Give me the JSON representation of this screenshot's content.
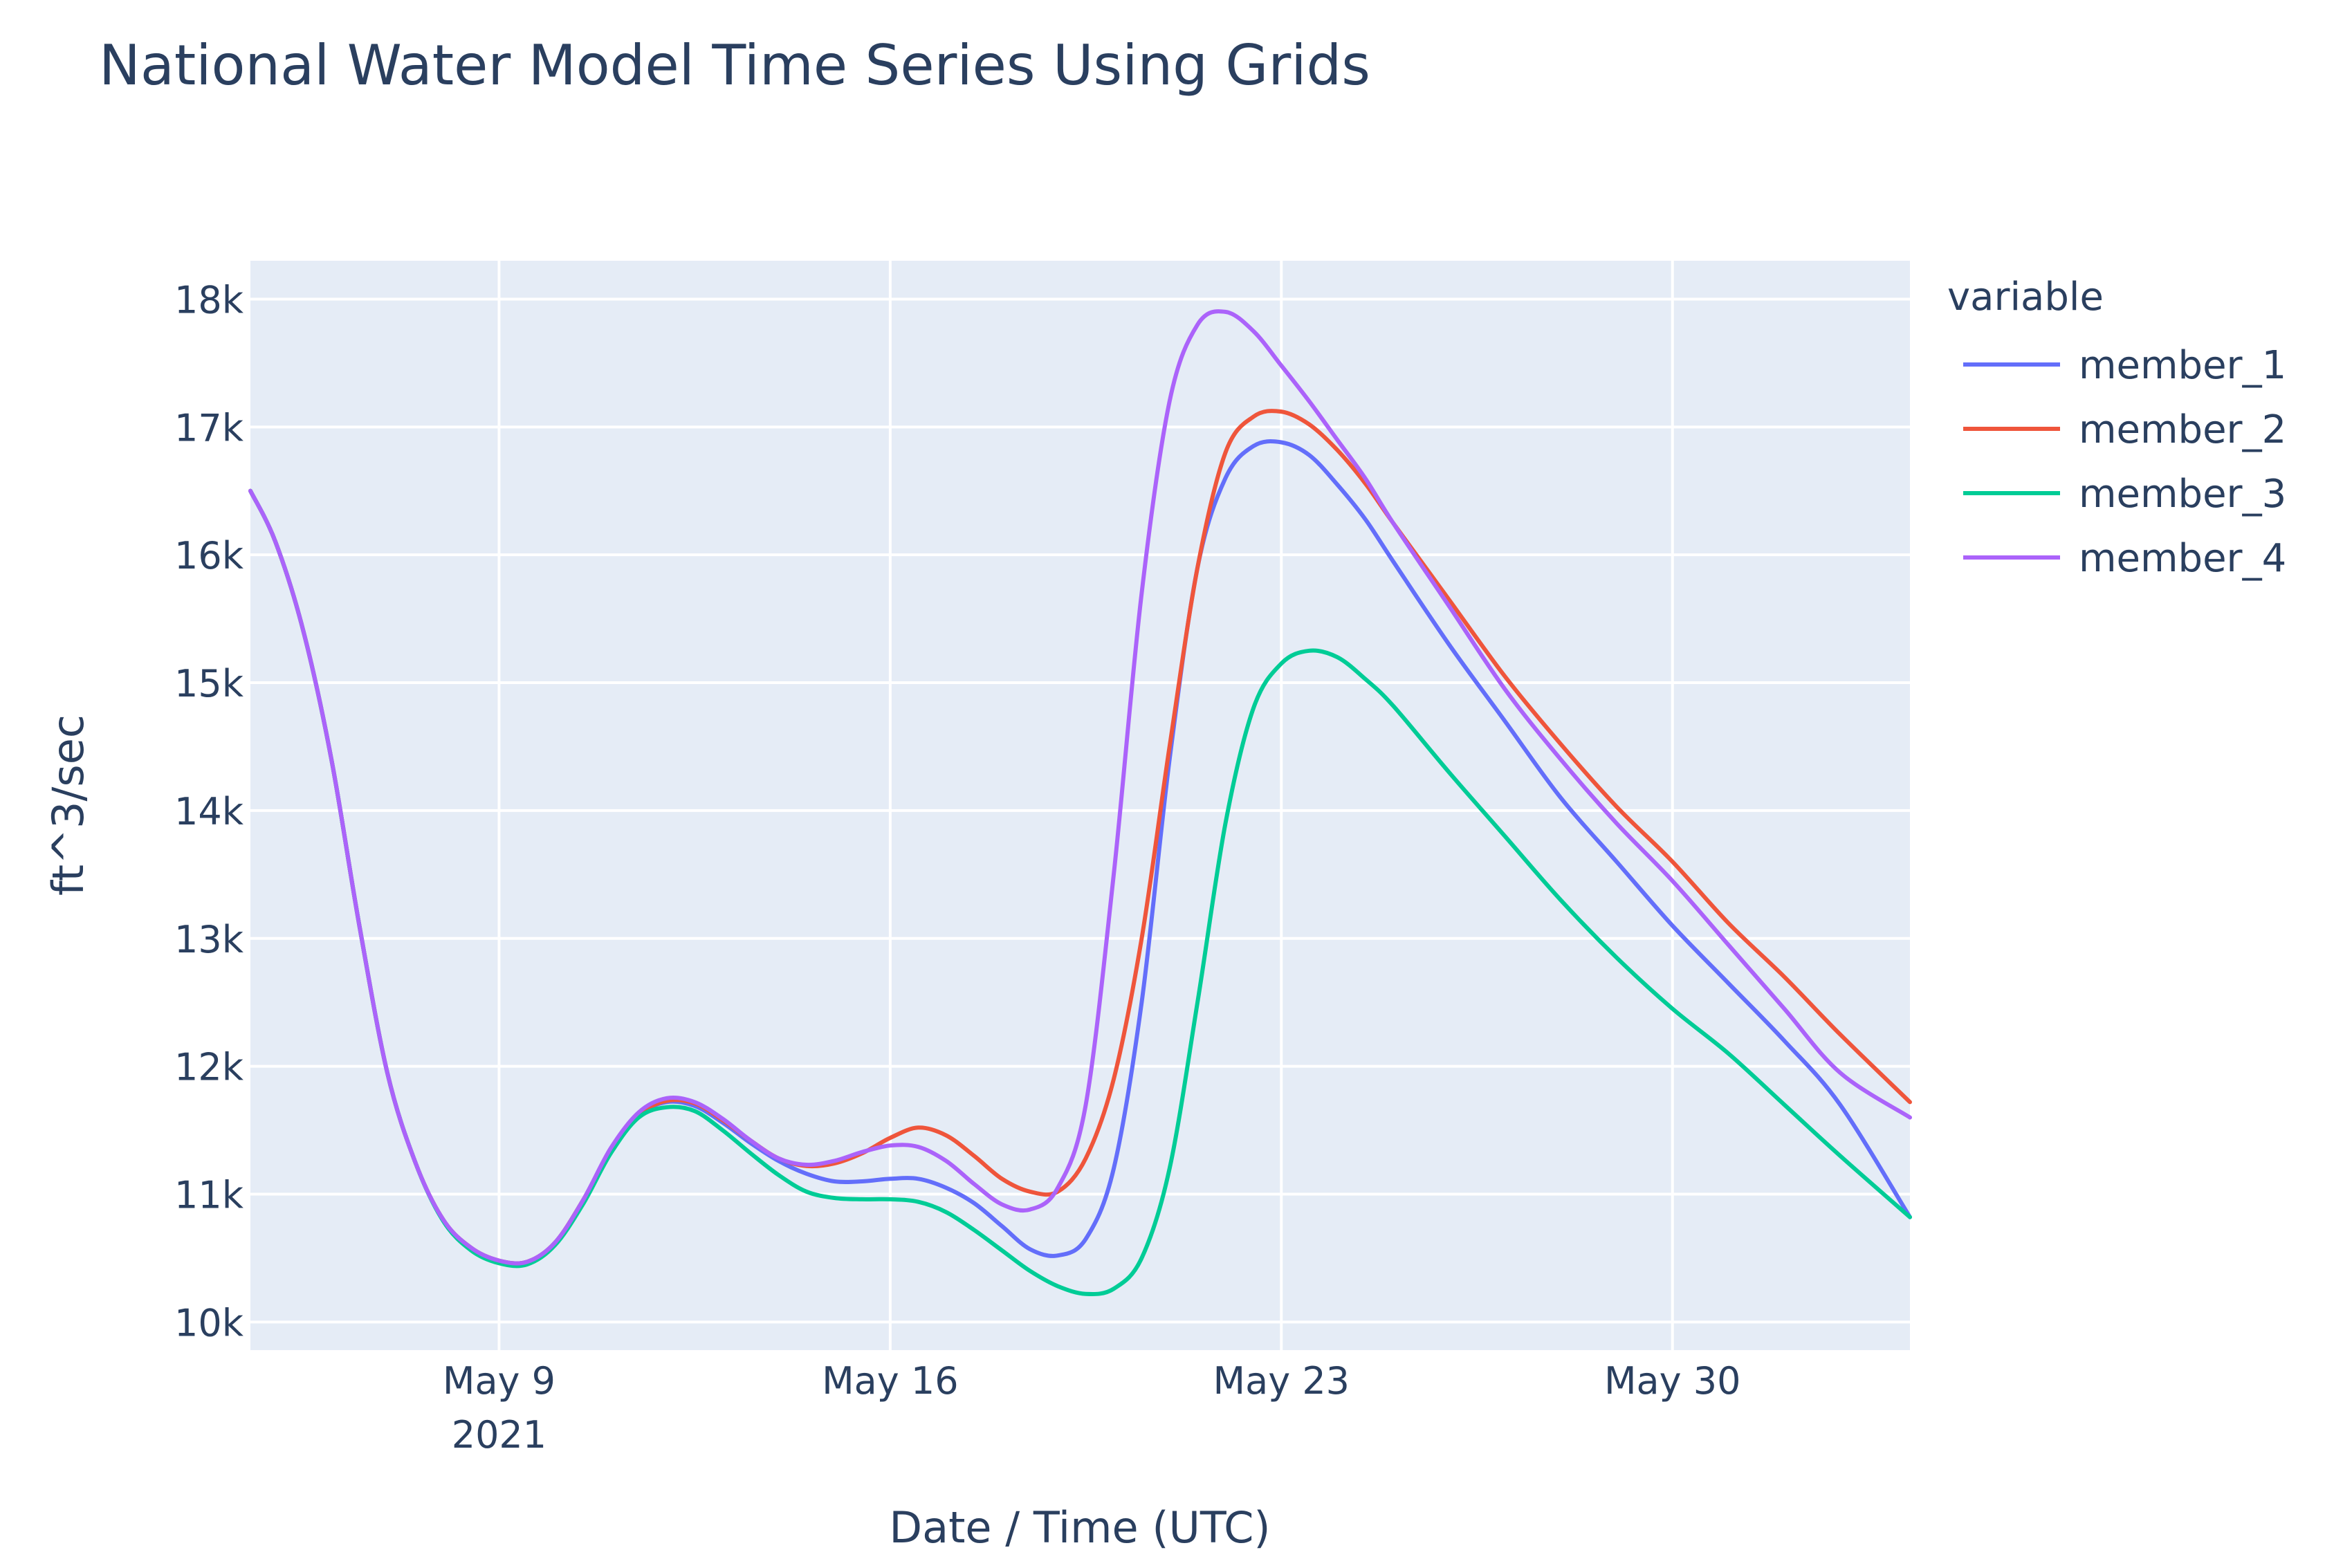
{
  "chart_data": {
    "type": "line",
    "title": "National Water Model Time Series Using Grids",
    "xlabel": "Date / Time (UTC)",
    "ylabel": "ft^3/sec",
    "x_tick_labels": [
      {
        "day": 9,
        "label": "May 9",
        "sublabel": "2021"
      },
      {
        "day": 16,
        "label": "May 16",
        "sublabel": ""
      },
      {
        "day": 23,
        "label": "May 23",
        "sublabel": ""
      },
      {
        "day": 30,
        "label": "May 30",
        "sublabel": ""
      }
    ],
    "y_tick_values": [
      10000,
      11000,
      12000,
      13000,
      14000,
      15000,
      16000,
      17000,
      18000
    ],
    "y_tick_labels": [
      "10k",
      "11k",
      "12k",
      "13k",
      "14k",
      "15k",
      "16k",
      "17k",
      "18k"
    ],
    "xlim_day": [
      4.55,
      34.25
    ],
    "ylim": [
      9780,
      18300
    ],
    "grid": true,
    "legend": {
      "title": "variable",
      "placement": "right"
    },
    "x_unit": "day of May 2021",
    "series": [
      {
        "name": "member_1",
        "color": "#636efa",
        "x": [
          4.55,
          5,
          5.5,
          6,
          6.5,
          7,
          7.5,
          8,
          8.5,
          9,
          9.5,
          10,
          10.5,
          11,
          11.5,
          12,
          12.5,
          13,
          13.5,
          14,
          14.5,
          15,
          15.5,
          16,
          16.5,
          17,
          17.5,
          18,
          18.5,
          19,
          19.5,
          20,
          20.5,
          21,
          21.5,
          22,
          22.5,
          23,
          23.5,
          24,
          24.5,
          25,
          26,
          27,
          28,
          29,
          30,
          31,
          32,
          33,
          34.25
        ],
        "y": [
          16500,
          16100,
          15400,
          14400,
          13100,
          11950,
          11250,
          10800,
          10580,
          10480,
          10470,
          10620,
          10950,
          11350,
          11620,
          11720,
          11690,
          11560,
          11400,
          11260,
          11160,
          11100,
          11100,
          11120,
          11120,
          11050,
          10930,
          10750,
          10570,
          10520,
          10650,
          11200,
          12500,
          14400,
          15900,
          16600,
          16850,
          16880,
          16780,
          16550,
          16280,
          15950,
          15300,
          14700,
          14100,
          13600,
          13100,
          12650,
          12200,
          11700,
          10820
        ]
      },
      {
        "name": "member_2",
        "color": "#ef553b",
        "x": [
          4.55,
          5,
          5.5,
          6,
          6.5,
          7,
          7.5,
          8,
          8.5,
          9,
          9.5,
          10,
          10.5,
          11,
          11.5,
          12,
          12.5,
          13,
          13.5,
          14,
          14.5,
          15,
          15.5,
          16,
          16.5,
          17,
          17.5,
          18,
          18.5,
          19,
          19.5,
          20,
          20.5,
          21,
          21.5,
          22,
          22.5,
          23,
          23.5,
          24,
          24.5,
          25,
          26,
          27,
          28,
          29,
          30,
          31,
          32,
          33,
          34.25
        ],
        "y": [
          16500,
          16100,
          15400,
          14400,
          13100,
          11950,
          11250,
          10800,
          10580,
          10480,
          10470,
          10620,
          10950,
          11350,
          11620,
          11730,
          11710,
          11580,
          11420,
          11280,
          11220,
          11240,
          11320,
          11440,
          11520,
          11460,
          11300,
          11120,
          11020,
          11020,
          11280,
          11900,
          13000,
          14500,
          15900,
          16800,
          17080,
          17120,
          17020,
          16820,
          16560,
          16250,
          15650,
          15050,
          14520,
          14030,
          13600,
          13120,
          12700,
          12250,
          11720
        ]
      },
      {
        "name": "member_3",
        "color": "#00cc96",
        "x": [
          4.55,
          5,
          5.5,
          6,
          6.5,
          7,
          7.5,
          8,
          8.5,
          9,
          9.5,
          10,
          10.5,
          11,
          11.5,
          12,
          12.5,
          13,
          13.5,
          14,
          14.5,
          15,
          15.5,
          16,
          16.5,
          17,
          17.5,
          18,
          18.5,
          19,
          19.5,
          20,
          20.5,
          21,
          21.5,
          22,
          22.5,
          23,
          23.5,
          24,
          24.5,
          25,
          26,
          27,
          28,
          29,
          30,
          31,
          32,
          33,
          34.25
        ],
        "y": [
          16500,
          16100,
          15400,
          14400,
          13100,
          11950,
          11250,
          10790,
          10560,
          10460,
          10450,
          10600,
          10920,
          11320,
          11600,
          11680,
          11650,
          11500,
          11320,
          11150,
          11020,
          10970,
          10960,
          10960,
          10940,
          10860,
          10720,
          10560,
          10400,
          10280,
          10220,
          10260,
          10500,
          11200,
          12500,
          13900,
          14800,
          15150,
          15250,
          15200,
          15030,
          14820,
          14300,
          13800,
          13300,
          12850,
          12450,
          12100,
          11700,
          11300,
          10820
        ]
      },
      {
        "name": "member_4",
        "color": "#ab63fa",
        "x": [
          4.55,
          5,
          5.5,
          6,
          6.5,
          7,
          7.5,
          8,
          8.5,
          9,
          9.5,
          10,
          10.5,
          11,
          11.5,
          12,
          12.5,
          13,
          13.5,
          14,
          14.5,
          15,
          15.5,
          16,
          16.5,
          17,
          17.5,
          18,
          18.5,
          19,
          19.5,
          20,
          20.5,
          21,
          21.5,
          22,
          22.5,
          23,
          23.5,
          24,
          24.5,
          25,
          26,
          27,
          28,
          29,
          30,
          31,
          32,
          33,
          34.25
        ],
        "y": [
          16500,
          16100,
          15400,
          14400,
          13100,
          11950,
          11250,
          10800,
          10580,
          10480,
          10470,
          10620,
          10950,
          11360,
          11640,
          11750,
          11720,
          11590,
          11420,
          11280,
          11230,
          11260,
          11330,
          11380,
          11370,
          11260,
          11080,
          10920,
          10880,
          11050,
          11700,
          13500,
          15700,
          17200,
          17800,
          17900,
          17750,
          17480,
          17200,
          16900,
          16600,
          16250,
          15600,
          14950,
          14400,
          13900,
          13450,
          12950,
          12450,
          11950,
          11600
        ]
      }
    ]
  }
}
